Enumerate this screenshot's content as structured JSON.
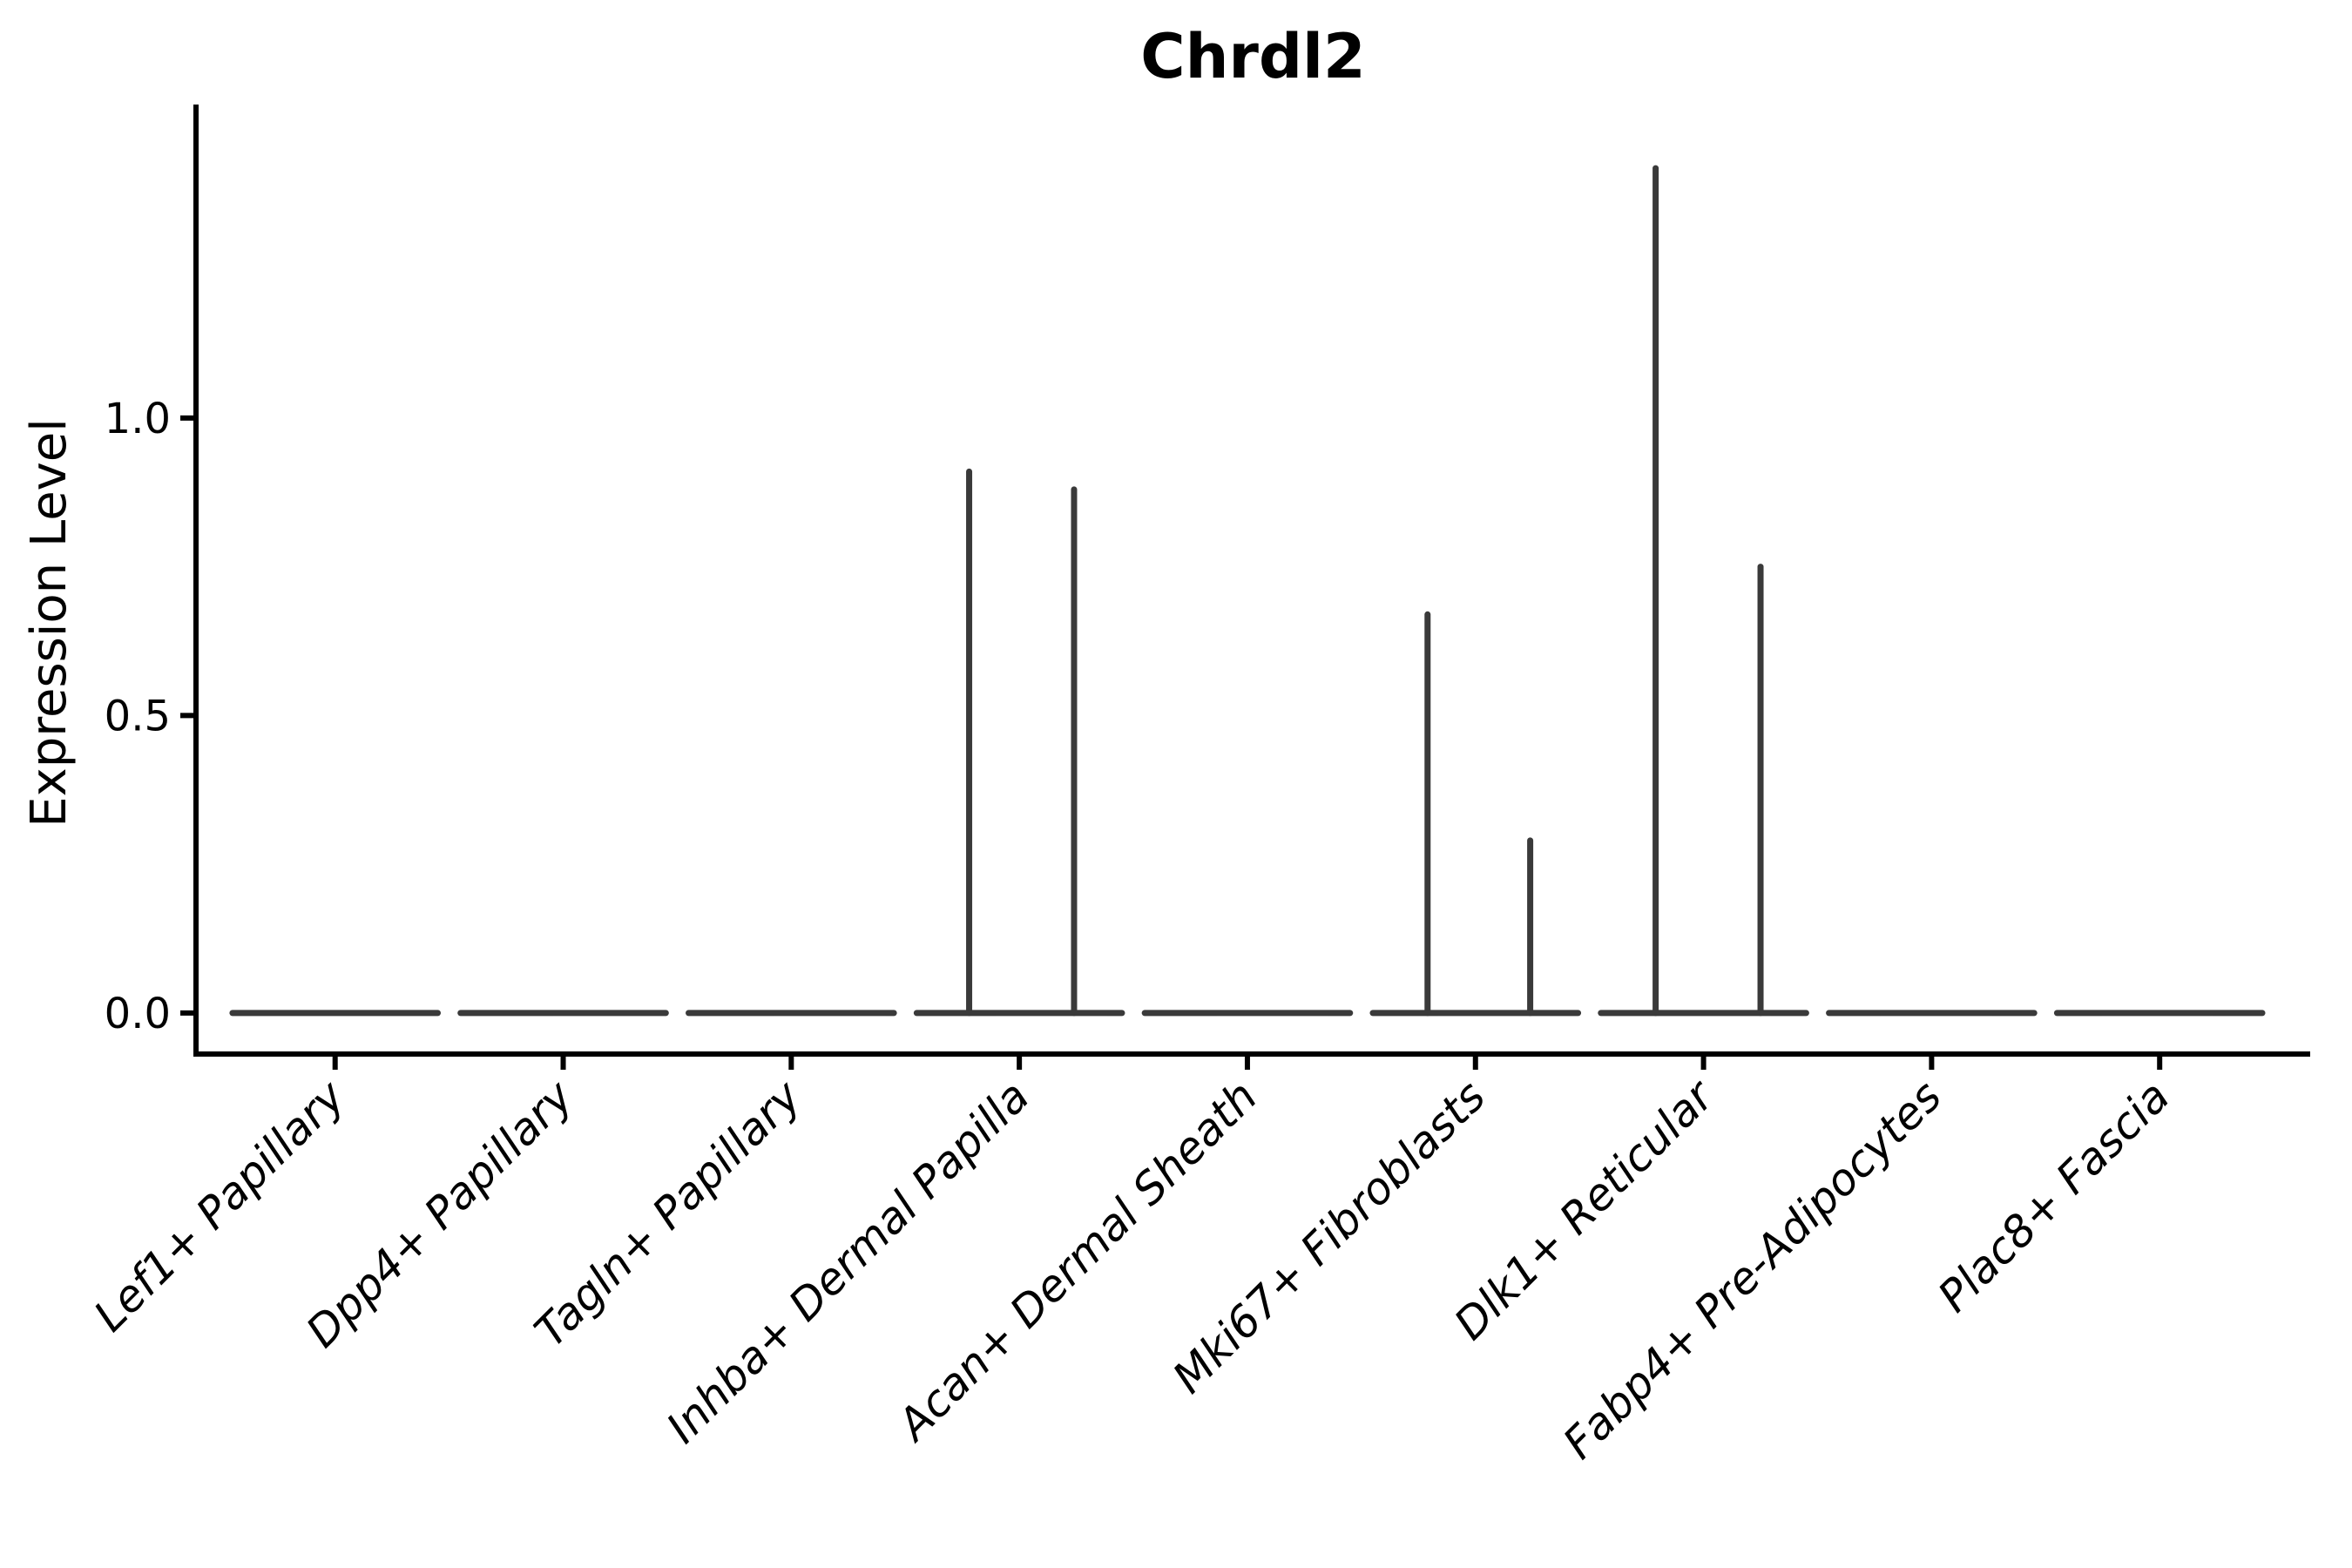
{
  "figure": {
    "background": "#ffffff"
  },
  "chart_data": {
    "type": "violin",
    "title": "Chrdl2",
    "ylabel": "Expression Level",
    "xlabel": "",
    "grid": false,
    "legend": null,
    "ylim": [
      -0.069,
      1.527
    ],
    "xlim": [
      -0.61,
      8.66
    ],
    "yticks": [
      {
        "value": 0.0,
        "label": "0.0"
      },
      {
        "value": 0.5,
        "label": "0.5"
      },
      {
        "value": 1.0,
        "label": "1.0"
      }
    ],
    "baseline_value": 0.0,
    "violin_halfwidth": 0.45,
    "categories": [
      {
        "label": "Lef1+ Papillary",
        "spikes": []
      },
      {
        "label": "Dpp4+ Papillary",
        "spikes": []
      },
      {
        "label": "Tagln+ Papillary",
        "spikes": []
      },
      {
        "label": "Inhba+ Dermal Papilla",
        "spikes": [
          {
            "offset": -0.22,
            "value": 0.91
          },
          {
            "offset": 0.24,
            "value": 0.88
          }
        ]
      },
      {
        "label": "Acan+ Dermal Sheath",
        "spikes": []
      },
      {
        "label": "Mki67+ Fibroblasts",
        "spikes": [
          {
            "offset": -0.21,
            "value": 0.67
          },
          {
            "offset": 0.24,
            "value": 0.29
          }
        ]
      },
      {
        "label": "Dlk1+ Reticular",
        "spikes": [
          {
            "offset": -0.21,
            "value": 1.42
          },
          {
            "offset": 0.25,
            "value": 0.75
          }
        ]
      },
      {
        "label": "Fabp4+ Pre-Adipocytes",
        "spikes": []
      },
      {
        "label": "Plac8+ Fascia",
        "spikes": []
      }
    ],
    "colors": {
      "violin": "#3a3a3a",
      "axis": "#000000",
      "text": "#000000"
    }
  }
}
